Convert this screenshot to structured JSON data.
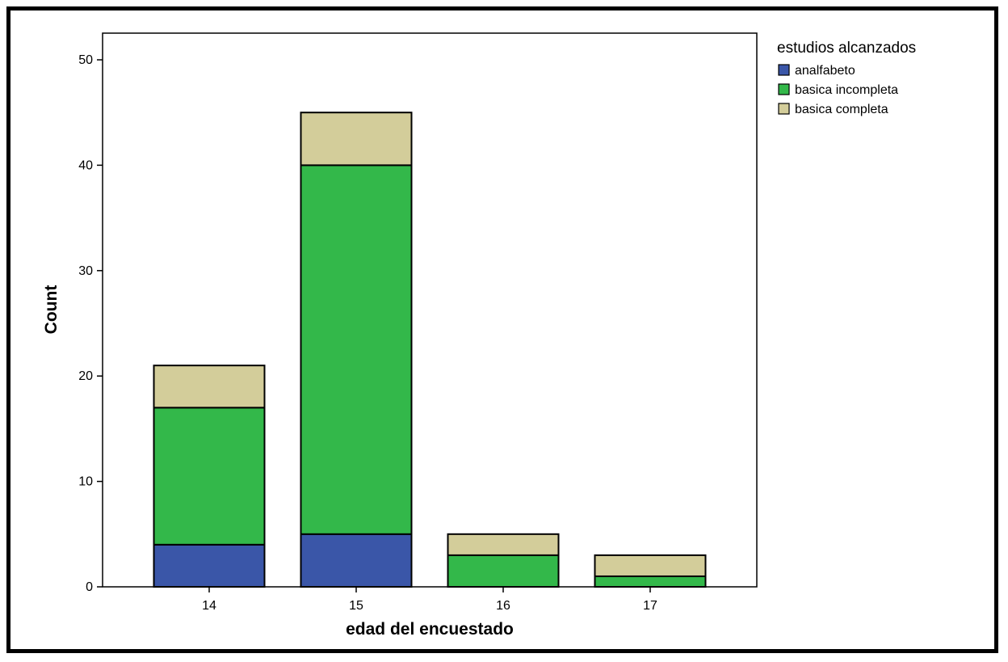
{
  "chart_data": {
    "type": "bar",
    "stacked": true,
    "categories": [
      "14",
      "15",
      "16",
      "17"
    ],
    "series": [
      {
        "name": "analfabeto",
        "values": [
          4,
          5,
          0,
          0
        ],
        "color": "#3a56a8"
      },
      {
        "name": "basica incompleta",
        "values": [
          13,
          35,
          3,
          1
        ],
        "color": "#33b84a"
      },
      {
        "name": "basica completa",
        "values": [
          4,
          5,
          2,
          2
        ],
        "color": "#d3cd9a"
      }
    ],
    "title": "",
    "xlabel": "edad del encuestado",
    "ylabel": "Count",
    "ylim": [
      0,
      50
    ],
    "yticks": [
      0,
      10,
      20,
      30,
      40,
      50
    ],
    "legend": {
      "title": "estudios alcanzados",
      "placement": "right"
    },
    "grid": false
  }
}
